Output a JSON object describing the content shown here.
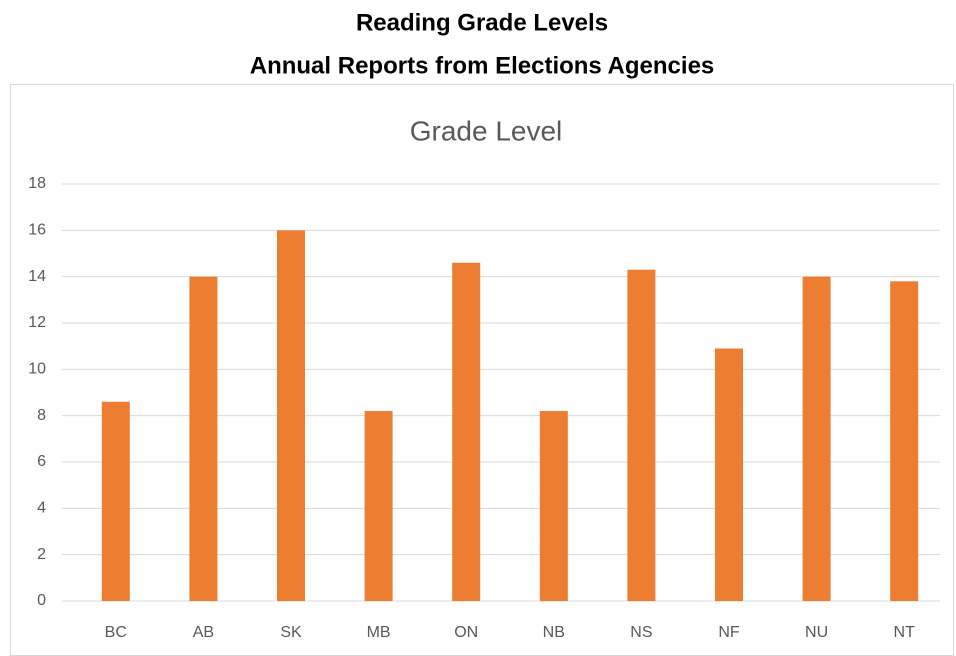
{
  "chart_data": {
    "type": "bar",
    "title": "Reading Grade Levels",
    "subtitle": "Annual Reports from Elections Agencies",
    "categories": [
      "BC",
      "AB",
      "SK",
      "MB",
      "ON",
      "NB",
      "NS",
      "NF",
      "NU",
      "NT"
    ],
    "series": [
      {
        "name": "Grade Level",
        "color": "#ed7d31",
        "values": [
          8.6,
          14,
          16,
          8.2,
          14.6,
          8.2,
          14.3,
          10.9,
          14,
          13.8
        ]
      }
    ],
    "ylim": [
      0,
      18
    ],
    "yticks": [
      0,
      2,
      4,
      6,
      8,
      10,
      12,
      14,
      16,
      18
    ],
    "grid": true
  }
}
